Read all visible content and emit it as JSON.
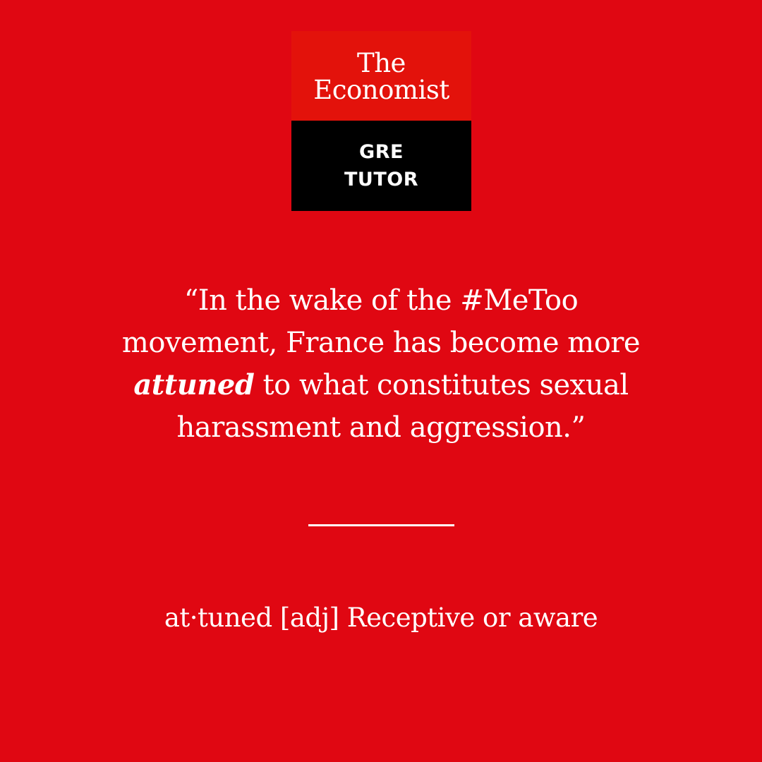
{
  "brand": {
    "logo_line_1": "The",
    "logo_line_2": "Economist",
    "sub_line_1": "GRE",
    "sub_line_2": "TUTOR",
    "colors": {
      "background": "#e00712",
      "logo_red": "#e3120b",
      "logo_black": "#000000",
      "text": "#ffffff"
    }
  },
  "quote": {
    "line_1": "“In the wake of the #MeToo",
    "line_2": "movement, France has become more",
    "line_3_highlight": "attuned",
    "line_3_rest": " to what constitutes sexual",
    "line_4": "harassment and aggression.”"
  },
  "definition": {
    "text": "at·tuned [adj] Receptive or aware"
  }
}
